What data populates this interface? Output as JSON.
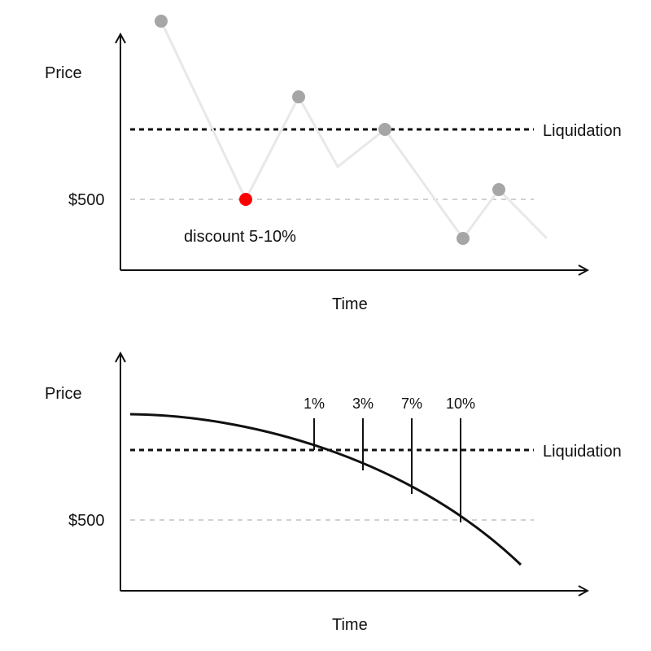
{
  "panel1": {
    "y_label": "Price",
    "x_label": "Time",
    "price_tick": "$500",
    "threshold_label": "Liquidation",
    "annotation": "discount 5-10%"
  },
  "panel2": {
    "y_label": "Price",
    "x_label": "Time",
    "price_tick": "$500",
    "threshold_label": "Liquidation",
    "markers": [
      "1%",
      "3%",
      "7%",
      "10%"
    ]
  },
  "colors": {
    "axis": "#111111",
    "price_path": "#e8e8e8",
    "point": "#a6a6a6",
    "highlight": "#ff0000",
    "ref_line": "#d0d0d0",
    "threshold_line": "#111111",
    "curve": "#111111"
  }
}
